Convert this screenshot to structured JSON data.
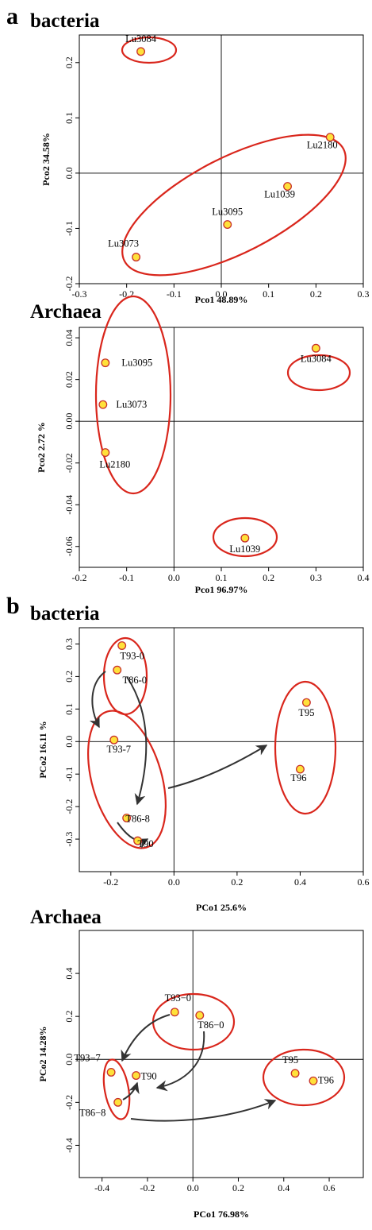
{
  "panels": [
    {
      "letter": "a"
    },
    {
      "letter": "b"
    }
  ],
  "colors": {
    "point_fill": "#ffe13a",
    "point_stroke": "#c8302a",
    "ellipse": "#d9261c",
    "arrow": "#333333"
  },
  "chart_data": [
    {
      "type": "scatter",
      "title": "bacteria",
      "xlabel": "Pco1  48.89%",
      "ylabel": "Pco2  34.58%",
      "xlim": [
        -0.3,
        0.3
      ],
      "ylim": [
        -0.2,
        0.25
      ],
      "xticks": [
        "-0.3",
        "-0.2",
        "-0.1",
        "0.0",
        "0.1",
        "0.2",
        "0.3"
      ],
      "yticks": [
        "-0.2",
        "-0.1",
        "0.0",
        "0.1",
        "0.2"
      ],
      "points": [
        {
          "label": "Lu3084",
          "x": -0.17,
          "y": 0.22
        },
        {
          "label": "Lu2180",
          "x": 0.23,
          "y": 0.065
        },
        {
          "label": "Lu1039",
          "x": 0.14,
          "y": -0.024
        },
        {
          "label": "Lu3095",
          "x": 0.013,
          "y": -0.093
        },
        {
          "label": "Lu3073",
          "x": -0.18,
          "y": -0.152
        }
      ]
    },
    {
      "type": "scatter",
      "title": "Archaea",
      "xlabel": "Pco1  96.97%",
      "ylabel": "Pco2  2.72 %",
      "xlim": [
        -0.2,
        0.4
      ],
      "ylim": [
        -0.07,
        0.045
      ],
      "xticks": [
        "-0.2",
        "-0.1",
        "0.0",
        "0.1",
        "0.2",
        "0.3",
        "0.4"
      ],
      "yticks": [
        "-0.06",
        "-0.04",
        "-0.02",
        "0.00",
        "0.02",
        "0.04"
      ],
      "points": [
        {
          "label": "Lu3095",
          "x": -0.145,
          "y": 0.028
        },
        {
          "label": "Lu3073",
          "x": -0.15,
          "y": 0.008
        },
        {
          "label": "Lu2180",
          "x": -0.145,
          "y": -0.015
        },
        {
          "label": "Lu3084",
          "x": 0.3,
          "y": 0.035
        },
        {
          "label": "Lu1039",
          "x": 0.15,
          "y": -0.056
        }
      ]
    },
    {
      "type": "scatter",
      "title": "bacteria",
      "xlabel": "PCo1  25.6%",
      "ylabel": "PCo2  16.11 %",
      "xlim": [
        -0.3,
        0.6
      ],
      "ylim": [
        -0.4,
        0.35
      ],
      "xticks": [
        "-0.2",
        "0.0",
        "0.2",
        "0.4",
        "0.6"
      ],
      "yticks": [
        "-0.3",
        "-0.2",
        "-0.1",
        "0.0",
        "0.1",
        "0.2",
        "0.3"
      ],
      "points": [
        {
          "label": "T93-0",
          "x": -0.165,
          "y": 0.295
        },
        {
          "label": "T86-0",
          "x": -0.18,
          "y": 0.22
        },
        {
          "label": "T93-7",
          "x": -0.19,
          "y": 0.005
        },
        {
          "label": "T86-8",
          "x": -0.15,
          "y": -0.235
        },
        {
          "label": "T90",
          "x": -0.115,
          "y": -0.305
        },
        {
          "label": "T95",
          "x": 0.42,
          "y": 0.12
        },
        {
          "label": "T96",
          "x": 0.4,
          "y": -0.085
        }
      ]
    },
    {
      "type": "scatter",
      "title": "Archaea",
      "xlabel": "PCo1  76.98%",
      "ylabel": "PCo2  14.28%",
      "xlim": [
        -0.5,
        0.75
      ],
      "ylim": [
        -0.55,
        0.6
      ],
      "xticks": [
        "-0.4",
        "-0.2",
        "0.0",
        "0.2",
        "0.4",
        "0.6"
      ],
      "yticks": [
        "-0.4",
        "-0.2",
        "0.0",
        "0.2",
        "0.4"
      ],
      "points": [
        {
          "label": "T93−0",
          "x": -0.08,
          "y": 0.22
        },
        {
          "label": "T86−0",
          "x": 0.03,
          "y": 0.205
        },
        {
          "label": "T93−7",
          "x": -0.36,
          "y": -0.06
        },
        {
          "label": "T90",
          "x": -0.25,
          "y": -0.075
        },
        {
          "label": "T86−8",
          "x": -0.33,
          "y": -0.2
        },
        {
          "label": "T95",
          "x": 0.45,
          "y": -0.065
        },
        {
          "label": "T96",
          "x": 0.53,
          "y": -0.1
        }
      ]
    }
  ]
}
